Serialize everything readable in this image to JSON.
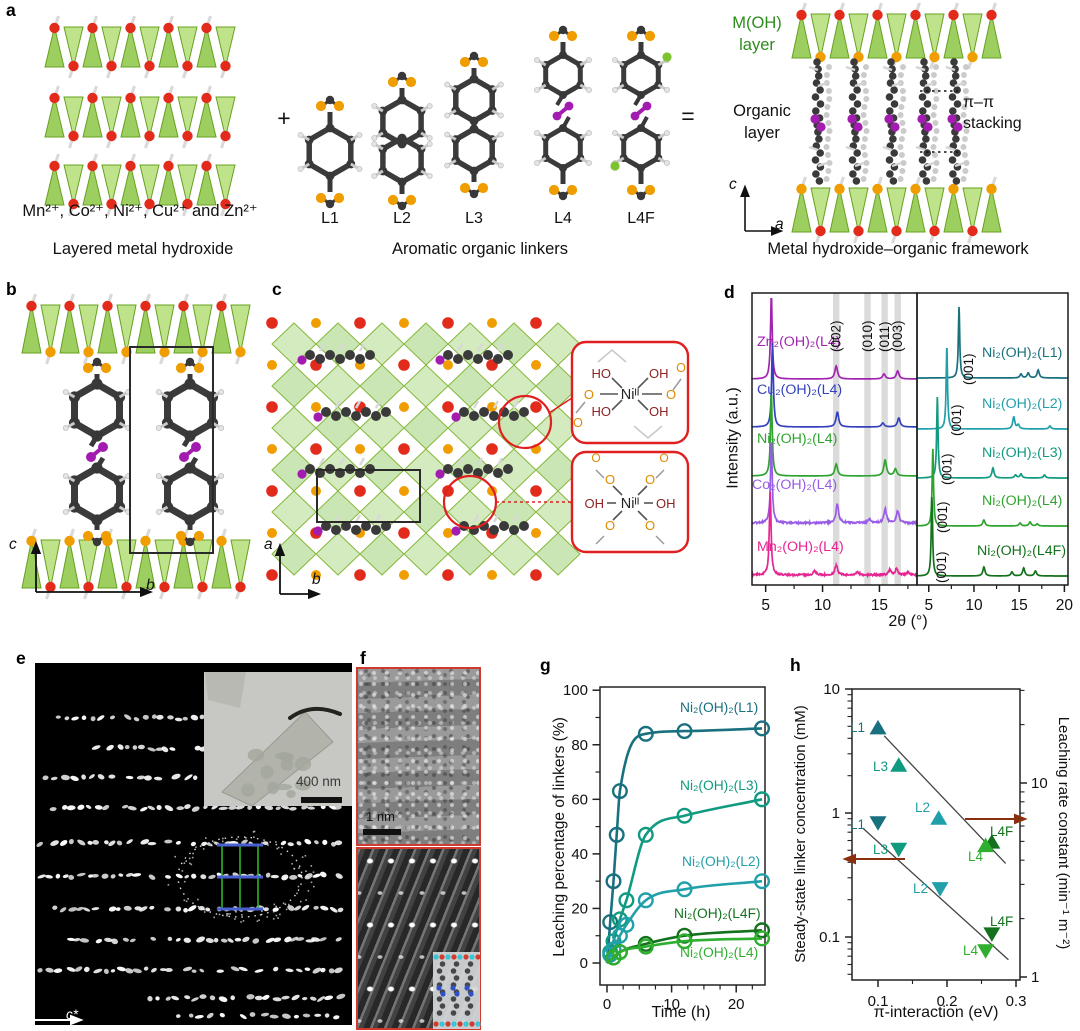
{
  "letters": {
    "a": "a",
    "b": "b",
    "c": "c",
    "d": "d",
    "e": "e",
    "f": "f",
    "g": "g",
    "h": "h"
  },
  "panel_a": {
    "ions": "Mn²⁺, Co²⁺, Ni²⁺, Cu²⁺ and Zn²⁺",
    "caption_left": "Layered metal hydroxide",
    "plus": "+",
    "equals": "=",
    "linker_labels": [
      "L1",
      "L2",
      "L3",
      "L4",
      "L4F"
    ],
    "caption_mid": "Aromatic organic linkers",
    "moh_line1": "M(OH)",
    "moh_line2": "layer",
    "moh_color": "#2e8b1e",
    "organic_line1": "Organic",
    "organic_line2": "layer",
    "pi_line1": "π–π",
    "pi_line2": "stacking",
    "caption_right": "Metal hydroxide–organic framework",
    "axis_c": "c",
    "axis_a": "a"
  },
  "panel_b": {
    "axis_c": "c",
    "axis_b": "b"
  },
  "panel_c": {
    "axis_a": "a",
    "axis_b": "b",
    "inset_top": {
      "center": "Niᴵᴵ",
      "top_left": "HO",
      "top_right": "OH",
      "bottom_left": "HO",
      "bottom_right": "OH",
      "left": "O",
      "right": "O",
      "o": "O"
    },
    "inset_bottom": {
      "center": "Niᴵᴵ",
      "left": "OH",
      "right": "OH",
      "o": "O"
    }
  },
  "panel_e": {
    "scale_label": "400 nm",
    "axis_v": "b*",
    "axis_h": "c*"
  },
  "panel_f": {
    "scale_label": "1 nm"
  },
  "chart_data": [
    {
      "id": "xrd-left",
      "type": "line",
      "title": "",
      "ylabel": "Intensity (a.u.)",
      "xlabel": "2θ (°)",
      "xlim": [
        3.8,
        18.3
      ],
      "xticks": [
        5,
        10,
        15
      ],
      "grid": false,
      "bands": {
        "positions": [
          11.2,
          13.95,
          15.45,
          16.6
        ],
        "labels": [
          "(002)",
          "(010)",
          "(011)",
          "(003)"
        ]
      },
      "series": [
        {
          "name": "Zn₂(OH)₂(L4)",
          "color": "#a124b0",
          "peaks": [
            [
              5.5,
              84
            ],
            [
              11.2,
              13
            ],
            [
              15.4,
              5
            ],
            [
              16.6,
              8
            ]
          ]
        },
        {
          "name": "Cu₂(OH)₂(L4)",
          "color": "#3341be",
          "peaks": [
            [
              5.6,
              84
            ],
            [
              11.3,
              15
            ],
            [
              15.3,
              4
            ],
            [
              16.7,
              9
            ]
          ]
        },
        {
          "name": "Ni₂(OH)₂(L4)",
          "color": "#2fa32f",
          "peaks": [
            [
              5.5,
              84
            ],
            [
              11.2,
              12
            ],
            [
              15.5,
              16
            ],
            [
              16.4,
              7
            ]
          ]
        },
        {
          "name": "Co₂(OH)₂(L4)",
          "color": "#985ce6",
          "noise": true,
          "peaks": [
            [
              5.5,
              84
            ],
            [
              11.3,
              19
            ],
            [
              14.1,
              4
            ],
            [
              15.5,
              14
            ],
            [
              16.6,
              12
            ]
          ]
        },
        {
          "name": "Mn₂(OH)₂(L4)",
          "color": "#e62492",
          "noise": true,
          "peaks": [
            [
              5.4,
              84
            ],
            [
              9.3,
              4
            ],
            [
              11.2,
              10
            ],
            [
              13.1,
              3
            ],
            [
              15.9,
              5
            ],
            [
              16.5,
              6
            ],
            [
              17.5,
              3
            ]
          ]
        }
      ]
    },
    {
      "id": "xrd-right",
      "type": "line",
      "xlim": [
        3.7,
        20.4
      ],
      "xticks": [
        5,
        10,
        15,
        20
      ],
      "peak_label": "(001)",
      "series": [
        {
          "name": "Ni₂(OH)₂(L1)",
          "color": "#19707e",
          "peaks": [
            [
              8.35,
              72
            ],
            [
              15.2,
              4
            ],
            [
              16.0,
              5
            ],
            [
              17.1,
              8
            ]
          ]
        },
        {
          "name": "Ni₂(OH)₂(L2)",
          "color": "#22a0aa",
          "peaks": [
            [
              7.0,
              84
            ],
            [
              14.4,
              12
            ],
            [
              14.9,
              4
            ],
            [
              18.4,
              3
            ]
          ]
        },
        {
          "name": "Ni₂(OH)₂(L3)",
          "color": "#109a80",
          "peaks": [
            [
              5.95,
              82
            ],
            [
              12.1,
              10
            ],
            [
              14.6,
              3
            ],
            [
              15.2,
              4
            ],
            [
              17.8,
              3
            ]
          ]
        },
        {
          "name": "Ni₂(OH)₂(L4)",
          "color": "#2fa32f",
          "peaks": [
            [
              5.45,
              78
            ],
            [
              11.1,
              6
            ],
            [
              15.1,
              3
            ],
            [
              16.2,
              4
            ],
            [
              17.0,
              2
            ]
          ]
        },
        {
          "name": "Ni₂(OH)₂(L4F)",
          "color": "#14711d",
          "peaks": [
            [
              5.35,
              80
            ],
            [
              11.1,
              9
            ],
            [
              14.2,
              4
            ],
            [
              15.5,
              8
            ],
            [
              16.8,
              5
            ]
          ]
        }
      ]
    },
    {
      "id": "leaching",
      "type": "line",
      "xlabel": "Time (h)",
      "ylabel": "Leaching percentage of linkers (%)",
      "xlim": [
        -1,
        24.5
      ],
      "ylim": [
        -8,
        101
      ],
      "xticks": [
        0,
        10,
        20
      ],
      "yticks": [
        0,
        20,
        40,
        60,
        80,
        100
      ],
      "grid": false,
      "series": [
        {
          "name": "Ni₂(OH)₂(L1)",
          "color": "#19707e",
          "points": [
            [
              0.5,
              15
            ],
            [
              1,
              30
            ],
            [
              1.5,
              47
            ],
            [
              2,
              63
            ],
            [
              6,
              84
            ],
            [
              12,
              85
            ],
            [
              24,
              86
            ]
          ]
        },
        {
          "name": "Ni₂(OH)₂(L3)",
          "color": "#109a80",
          "points": [
            [
              0.5,
              4
            ],
            [
              1,
              8
            ],
            [
              2,
              16
            ],
            [
              3,
              23
            ],
            [
              6,
              47
            ],
            [
              12,
              54
            ],
            [
              24,
              60
            ]
          ]
        },
        {
          "name": "Ni₂(OH)₂(L2)",
          "color": "#22a0aa",
          "points": [
            [
              0.5,
              3
            ],
            [
              1,
              5
            ],
            [
              2,
              10
            ],
            [
              3,
              14
            ],
            [
              6,
              23
            ],
            [
              12,
              27
            ],
            [
              24,
              30
            ]
          ]
        },
        {
          "name": "Ni₂(OH)₂(L4F)",
          "color": "#14711d",
          "points": [
            [
              1,
              2
            ],
            [
              2,
              4
            ],
            [
              6,
              7
            ],
            [
              12,
              10
            ],
            [
              24,
              12
            ]
          ]
        },
        {
          "name": "Ni₂(OH)₂(L4)",
          "color": "#2fae2f",
          "points": [
            [
              1,
              2
            ],
            [
              2,
              4
            ],
            [
              6,
              6
            ],
            [
              12,
              8
            ],
            [
              24,
              9
            ]
          ]
        }
      ]
    },
    {
      "id": "pi-interaction",
      "type": "scatter",
      "xlabel": "π-interaction (eV)",
      "ylabel_left": "Steady-state linker concentration (mM)",
      "ylabel_right": "Leaching rate constant (min⁻¹ m⁻²)",
      "xticks": [
        0.1,
        0.2,
        0.3
      ],
      "yticks_left": [
        "10",
        "1",
        "0.1"
      ],
      "yticks_right": [
        "10",
        "1"
      ],
      "xlim": [
        0.062,
        0.306
      ],
      "series_rate": [
        {
          "label": "L1",
          "x": 0.1,
          "y": 19.0,
          "color": "#19707e"
        },
        {
          "label": "L3",
          "x": 0.13,
          "y": 12.2,
          "color": "#109a80"
        },
        {
          "label": "L2",
          "x": 0.188,
          "y": 6.5,
          "color": "#22a0aa"
        },
        {
          "label": "L4F",
          "x": 0.265,
          "y": 4.9,
          "color": "#14711d"
        },
        {
          "label": "L4",
          "x": 0.256,
          "y": 4.7,
          "color": "#2fae2f"
        }
      ],
      "series_conc": [
        {
          "label": "L1",
          "x": 0.1,
          "y": 0.85,
          "color": "#19707e"
        },
        {
          "label": "L3",
          "x": 0.13,
          "y": 0.52,
          "color": "#109a80"
        },
        {
          "label": "L2",
          "x": 0.19,
          "y": 0.25,
          "color": "#22a0aa"
        },
        {
          "label": "L4F",
          "x": 0.265,
          "y": 0.108,
          "color": "#14711d"
        },
        {
          "label": "L4",
          "x": 0.256,
          "y": 0.079,
          "color": "#2fae2f"
        }
      ],
      "trend_rate": [
        [
          0.109,
          17.5
        ],
        [
          0.285,
          3.85
        ]
      ],
      "trend_conc": [
        [
          0.078,
          0.755
        ],
        [
          0.289,
          0.0655
        ]
      ],
      "arrow_color": "#8a2f0e"
    }
  ]
}
